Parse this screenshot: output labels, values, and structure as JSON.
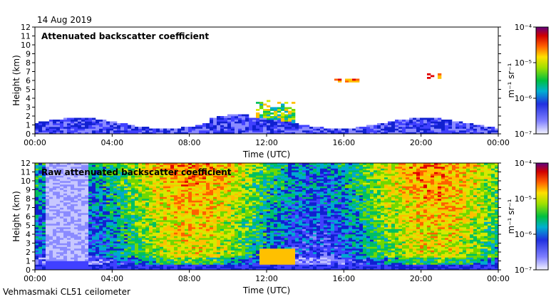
{
  "header": {
    "date": "14 Aug 2019"
  },
  "footer": {
    "station": "Vehmasmaki CL51 ceilometer"
  },
  "colorbar": {
    "unit_label": "m⁻¹ sr⁻¹",
    "ticks": [
      "10⁻⁴",
      "10⁻⁵",
      "10⁻⁶",
      "10⁻⁷"
    ]
  },
  "chart_data": [
    {
      "type": "heatmap",
      "title": "Attenuated backscatter coefficient",
      "xlabel": "Time (UTC)",
      "ylabel": "Height (km)",
      "x_ticks": [
        "00:00",
        "04:00",
        "08:00",
        "12:00",
        "16:00",
        "20:00",
        "00:00"
      ],
      "y_ticks": [
        0,
        1,
        2,
        3,
        4,
        5,
        6,
        7,
        8,
        9,
        10,
        11,
        12
      ],
      "ylim": [
        0,
        12
      ],
      "xlim_hours": [
        0,
        24
      ],
      "color_scale": "log",
      "clim": [
        1e-07,
        0.0001
      ],
      "features": [
        {
          "desc": "boundary layer",
          "hours": [
            0,
            24
          ],
          "top_km": 2.5
        },
        {
          "desc": "convective clouds",
          "hours": [
            11.5,
            13.5
          ],
          "top_km": 4.0
        },
        {
          "desc": "elevated layer",
          "hours": [
            15.5,
            17.0
          ],
          "top_km": 6.0
        },
        {
          "desc": "elevated layer",
          "hours": [
            20.3,
            21.0
          ],
          "top_km": 6.5
        }
      ]
    },
    {
      "type": "heatmap",
      "title": "Raw attenuated backscatter coefficient",
      "xlabel": "Time (UTC)",
      "ylabel": "Height (km)",
      "x_ticks": [
        "00:00",
        "04:00",
        "08:00",
        "12:00",
        "16:00",
        "20:00",
        "00:00"
      ],
      "y_ticks": [
        0,
        1,
        2,
        3,
        4,
        5,
        6,
        7,
        8,
        9,
        10,
        11,
        12
      ],
      "ylim": [
        0,
        12
      ],
      "xlim_hours": [
        0,
        24
      ],
      "color_scale": "log",
      "clim": [
        1e-07,
        0.0001
      ]
    }
  ]
}
